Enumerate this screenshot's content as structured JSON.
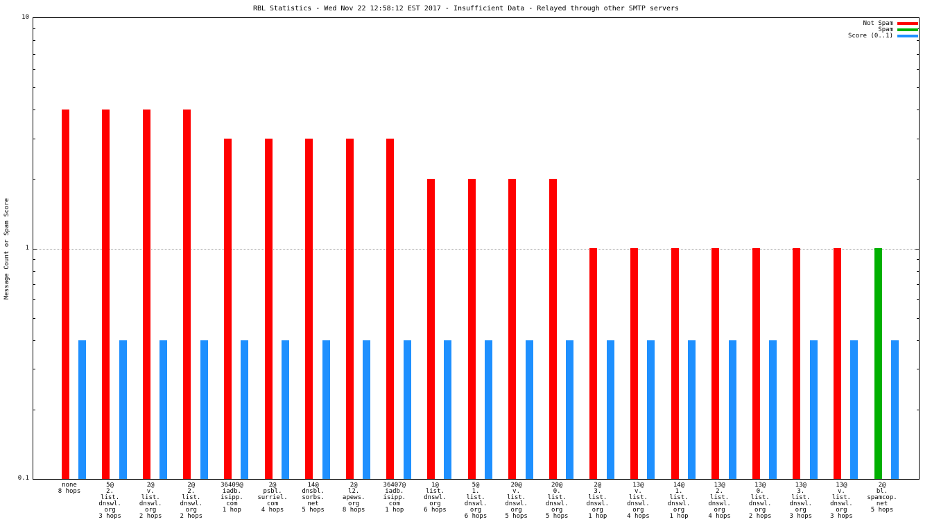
{
  "chart_data": {
    "type": "bar",
    "title": "RBL Statistics - Wed Nov 22 12:58:12 EST 2017 - Insufficient Data - Relayed through other SMTP servers",
    "ylabel": "Message Count or Spam Score",
    "yscale": "log",
    "ylim": [
      0.1,
      10
    ],
    "grid": "horizontal dotted line at y=1",
    "gridlines": [
      1
    ],
    "legend_position": "top-right inside",
    "background_color": "#ffffff",
    "axis_color": "#000000",
    "grid_color": "#999999",
    "yticks": [
      {
        "value": 10,
        "label": "10"
      },
      {
        "value": 1,
        "label": "1"
      },
      {
        "value": 0.1,
        "label": "0.1"
      }
    ],
    "categories": [
      [
        "none",
        "8 hops"
      ],
      [
        "5@",
        "2.",
        "list.",
        "dnswl.",
        "org",
        "3 hops"
      ],
      [
        "2@",
        "v.",
        "list.",
        "dnswl.",
        "org",
        "2 hops"
      ],
      [
        "2@",
        "2.",
        "list.",
        "dnswl.",
        "org",
        "2 hops"
      ],
      [
        "36409@",
        "iadb.",
        "isipp.",
        "com",
        "1 hop"
      ],
      [
        "2@",
        "psbl.",
        "surriel.",
        "com",
        "4 hops"
      ],
      [
        "14@",
        "dnsbl.",
        "sorbs.",
        "net",
        "5 hops"
      ],
      [
        "2@",
        "l2.",
        "apews.",
        "org",
        "8 hops"
      ],
      [
        "36407@",
        "iadb.",
        "isipp.",
        "com",
        "1 hop"
      ],
      [
        "1@",
        "list.",
        "dnswl.",
        "org",
        "6 hops"
      ],
      [
        "5@",
        "1.",
        "list.",
        "dnswl.",
        "org",
        "6 hops"
      ],
      [
        "20@",
        "v.",
        "list.",
        "dnswl.",
        "org",
        "5 hops"
      ],
      [
        "20@",
        "0.",
        "list.",
        "dnswl.",
        "org",
        "5 hops"
      ],
      [
        "2@",
        "3.",
        "list.",
        "dnswl.",
        "org",
        "1 hop"
      ],
      [
        "13@",
        "v.",
        "list.",
        "dnswl.",
        "org",
        "4 hops"
      ],
      [
        "14@",
        "1.",
        "list.",
        "dnswl.",
        "org",
        "1 hop"
      ],
      [
        "13@",
        "2.",
        "list.",
        "dnswl.",
        "org",
        "4 hops"
      ],
      [
        "13@",
        "0.",
        "list.",
        "dnswl.",
        "org",
        "2 hops"
      ],
      [
        "13@",
        "3.",
        "list.",
        "dnswl.",
        "org",
        "3 hops"
      ],
      [
        "13@",
        "v.",
        "list.",
        "dnswl.",
        "org",
        "3 hops"
      ],
      [
        "2@",
        "bl.",
        "spamcop.",
        "net",
        "5 hops"
      ]
    ],
    "series": [
      {
        "name": "Not Spam",
        "color": "#ff0000",
        "slot": "left",
        "values": [
          4,
          4,
          4,
          4,
          3,
          3,
          3,
          3,
          3,
          2,
          2,
          2,
          2,
          1,
          1,
          1,
          1,
          1,
          1,
          1,
          null
        ]
      },
      {
        "name": "Spam",
        "color": "#00b000",
        "slot": "left",
        "values": [
          null,
          null,
          null,
          null,
          null,
          null,
          null,
          null,
          null,
          null,
          null,
          null,
          null,
          null,
          null,
          null,
          null,
          null,
          null,
          null,
          1
        ]
      },
      {
        "name": "Score (0..1)",
        "color": "#1e90ff",
        "slot": "right",
        "values": [
          0.4,
          0.4,
          0.4,
          0.4,
          0.4,
          0.4,
          0.4,
          0.4,
          0.4,
          0.4,
          0.4,
          0.4,
          0.4,
          0.4,
          0.4,
          0.4,
          0.4,
          0.4,
          0.4,
          0.4,
          0.4
        ]
      }
    ]
  }
}
